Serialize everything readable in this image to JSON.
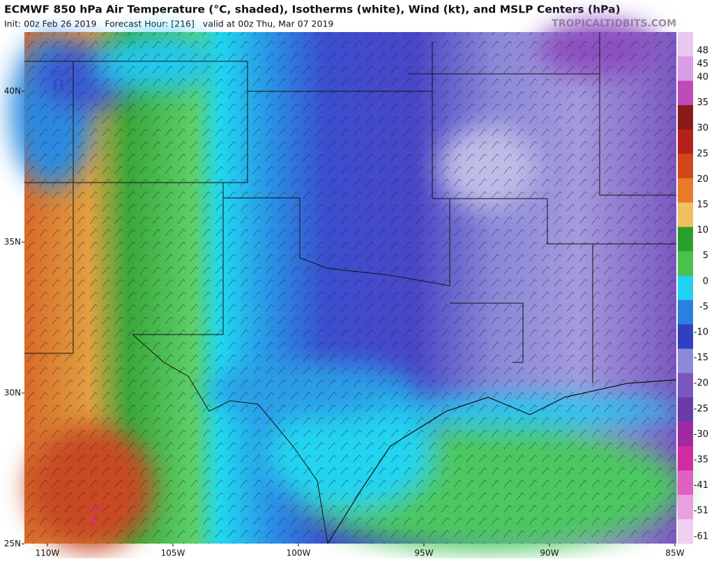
{
  "header": {
    "title": "ECMWF 850 hPa Air Temperature (°C, shaded), Isotherms (white), Wind (kt), and MSLP Centers (hPa)",
    "subtitle": "Init: 00z Feb 26 2019   Forecast Hour: [216]   valid at 00z Thu, Mar 07 2019",
    "credit": "TROPICALTIDBITS.COM"
  },
  "map": {
    "lat_labels": [
      "40N",
      "35N",
      "30N",
      "25N"
    ],
    "lon_labels": [
      "110W",
      "105W",
      "100W",
      "95W",
      "90W",
      "85W"
    ],
    "centers": [
      {
        "value": "1044",
        "symbol": "H",
        "color": "#2a4fc8"
      },
      {
        "value": "1009",
        "symbol": "L",
        "color": "#e0306a"
      }
    ]
  },
  "colorbar": {
    "ticks": [
      "48",
      "45",
      "40",
      "35",
      "30",
      "25",
      "20",
      "15",
      "10",
      "5",
      "0",
      "-5",
      "-10",
      "-15",
      "-20",
      "-25",
      "-30",
      "-35",
      "-41",
      "-51",
      "-61"
    ],
    "colors": [
      "#e8c8f0",
      "#d79de6",
      "#c04bb6",
      "#8b1a1a",
      "#b52018",
      "#d2461c",
      "#e87a28",
      "#f0c060",
      "#2aa02a",
      "#4cc04c",
      "#22d0f0",
      "#2a80e0",
      "#2f40c0",
      "#8c8ad8",
      "#7a58c0",
      "#6a3aa8",
      "#a02aa0",
      "#d22aa0",
      "#e060c0",
      "#e8a0e0",
      "#f0d0f0"
    ]
  }
}
